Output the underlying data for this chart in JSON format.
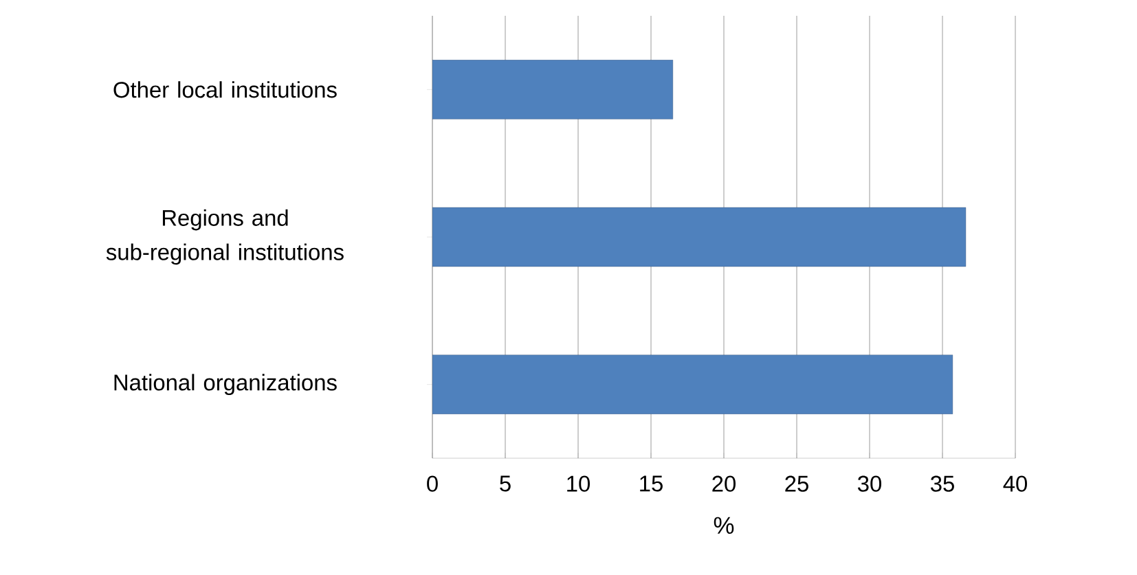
{
  "chart_data": {
    "type": "bar",
    "orientation": "horizontal",
    "categories": [
      "Other local institutions",
      "Regions and sub-regional institutions",
      "National organizations"
    ],
    "values": [
      16.5,
      36.6,
      35.7
    ],
    "color": "#4f81bd",
    "xlim": [
      0,
      40
    ],
    "xticks": [
      0,
      5,
      10,
      15,
      20,
      25,
      30,
      35,
      40
    ],
    "xlabel": "%",
    "grid": "x"
  }
}
